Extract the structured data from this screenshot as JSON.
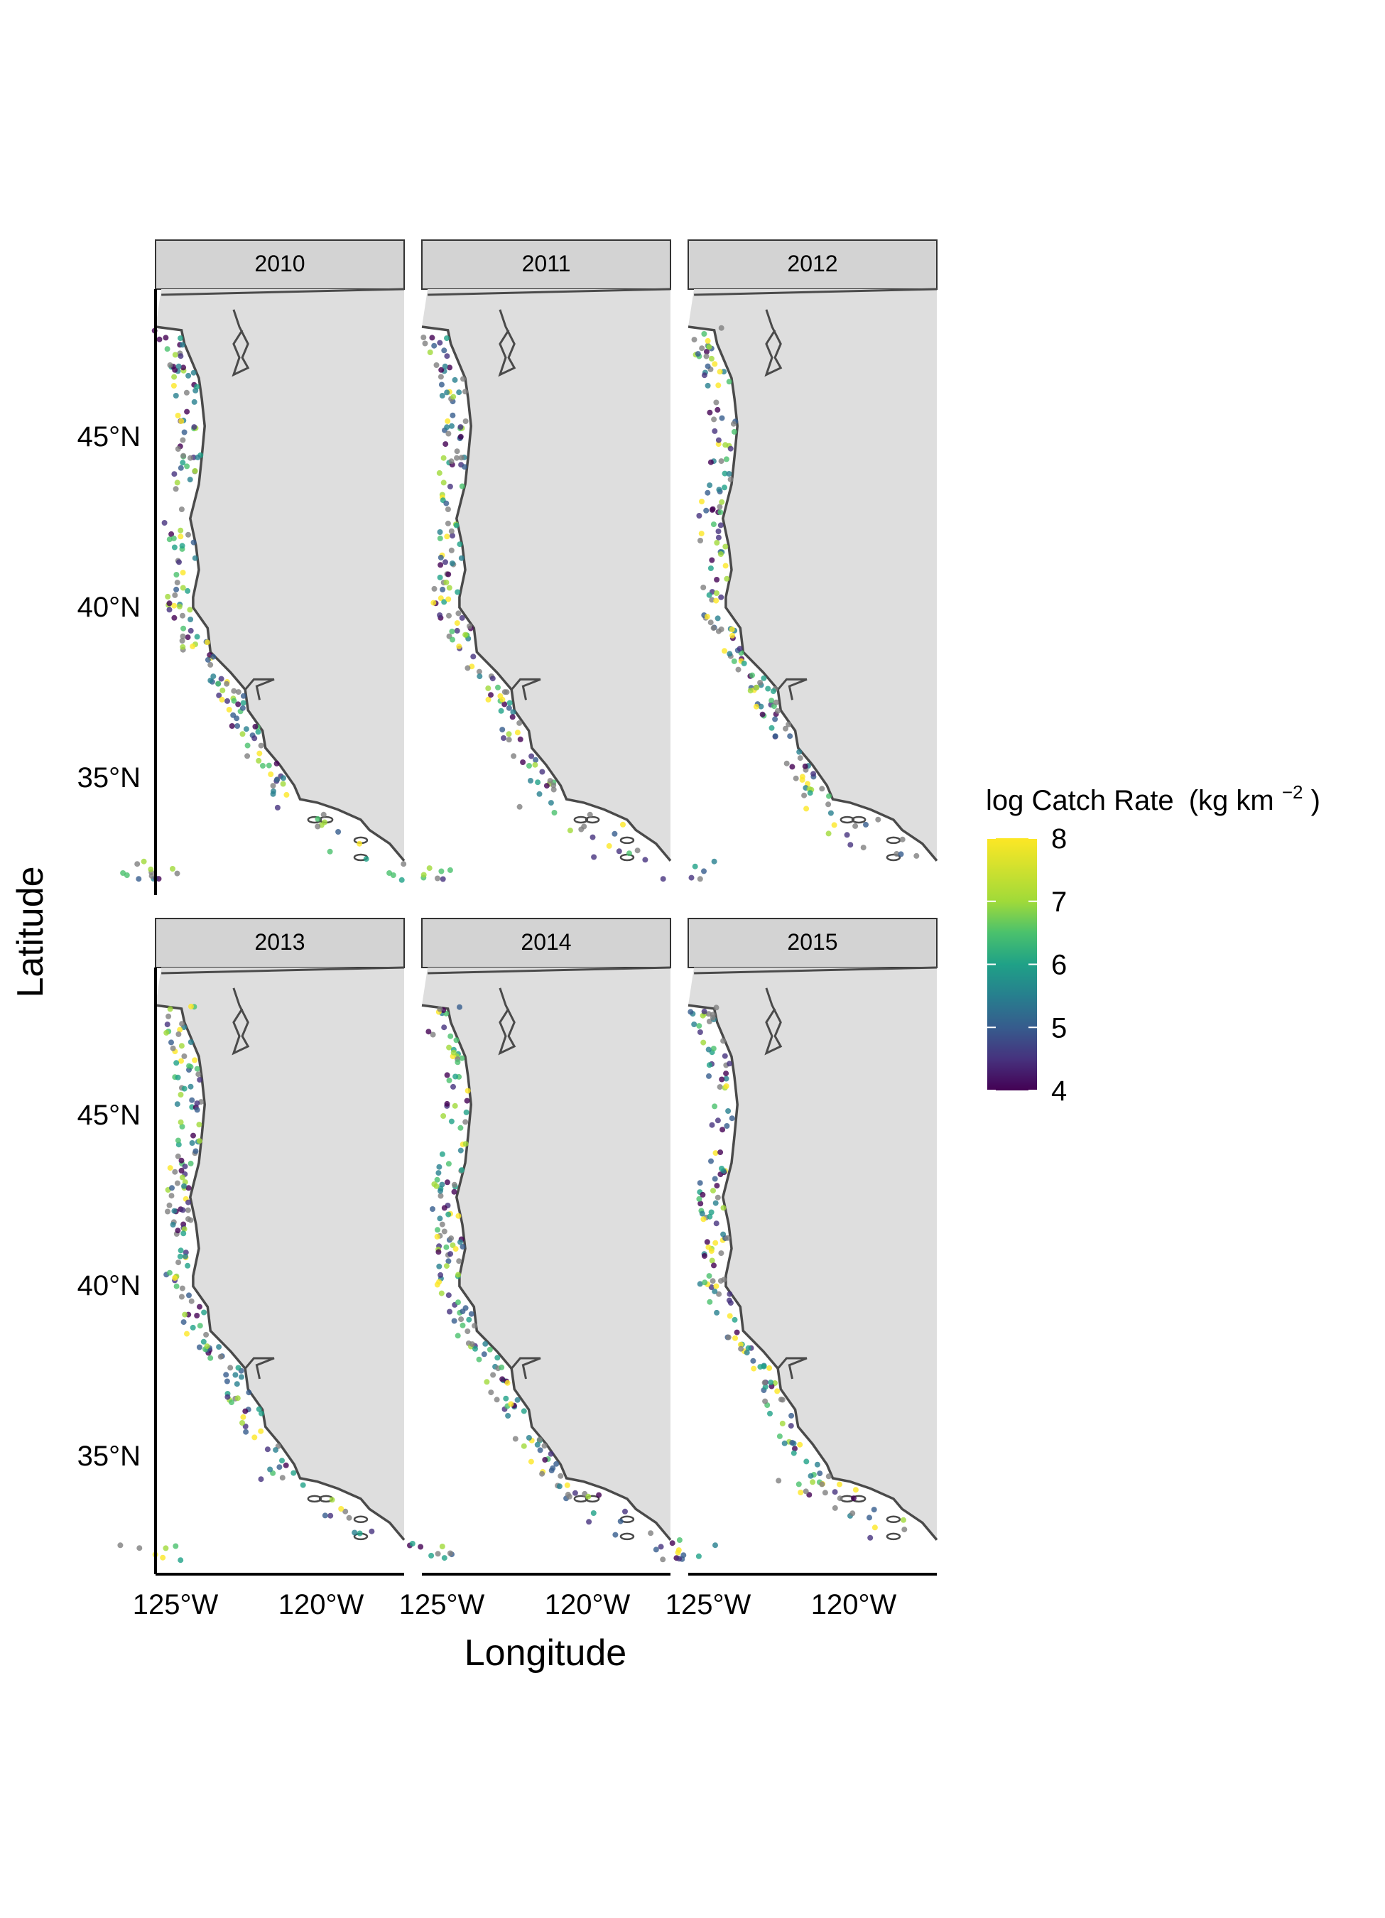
{
  "figure": {
    "xlabel": "Longitude",
    "ylabel": "Latitude",
    "x_ticks": [
      "125°W",
      "120°W"
    ],
    "y_ticks": [
      "45°N",
      "40°N",
      "35°N"
    ],
    "background_land": "#dedede",
    "coastline_color": "#4a4a4a",
    "point_default_color": "#7f7f7f"
  },
  "panels": [
    {
      "label": "2010"
    },
    {
      "label": "2011"
    },
    {
      "label": "2012"
    },
    {
      "label": "2013"
    },
    {
      "label": "2014"
    },
    {
      "label": "2015"
    }
  ],
  "legend": {
    "title": "log Catch Rate",
    "title_unit": "(kg km",
    "title_exp": "−2",
    "title_close": ")",
    "ticks": [
      "8",
      "7",
      "6",
      "5",
      "4"
    ],
    "min": 4,
    "max": 8,
    "palette": "viridis"
  },
  "chart_data": {
    "type": "scatter",
    "xlabel": "Longitude",
    "ylabel": "Latitude",
    "xlim": [
      -125.6,
      -117.0
    ],
    "ylim": [
      31.8,
      49.5
    ],
    "facets": [
      "2010",
      "2011",
      "2012",
      "2013",
      "2014",
      "2015"
    ],
    "color_scale": {
      "name": "log Catch Rate (kg km−2)",
      "min": 4,
      "max": 8,
      "palette": "viridis"
    },
    "coastline": [
      [
        -125.6,
        48.4
      ],
      [
        -124.7,
        48.3
      ],
      [
        -124.6,
        47.9
      ],
      [
        -124.3,
        47.3
      ],
      [
        -124.1,
        46.9
      ],
      [
        -124.0,
        46.3
      ],
      [
        -123.9,
        45.5
      ],
      [
        -124.0,
        44.6
      ],
      [
        -124.1,
        43.8
      ],
      [
        -124.4,
        42.8
      ],
      [
        -124.2,
        42.0
      ],
      [
        -124.1,
        41.3
      ],
      [
        -124.3,
        40.5
      ],
      [
        -124.3,
        40.2
      ],
      [
        -123.8,
        39.6
      ],
      [
        -123.7,
        38.9
      ],
      [
        -123.0,
        38.3
      ],
      [
        -122.5,
        37.8
      ],
      [
        -122.4,
        37.2
      ],
      [
        -121.9,
        36.6
      ],
      [
        -121.8,
        36.1
      ],
      [
        -121.3,
        35.6
      ],
      [
        -120.8,
        35.0
      ],
      [
        -120.6,
        34.6
      ],
      [
        -120.0,
        34.5
      ],
      [
        -119.3,
        34.3
      ],
      [
        -118.5,
        34.0
      ],
      [
        -118.2,
        33.7
      ],
      [
        -117.5,
        33.3
      ],
      [
        -117.0,
        32.8
      ]
    ]
  }
}
